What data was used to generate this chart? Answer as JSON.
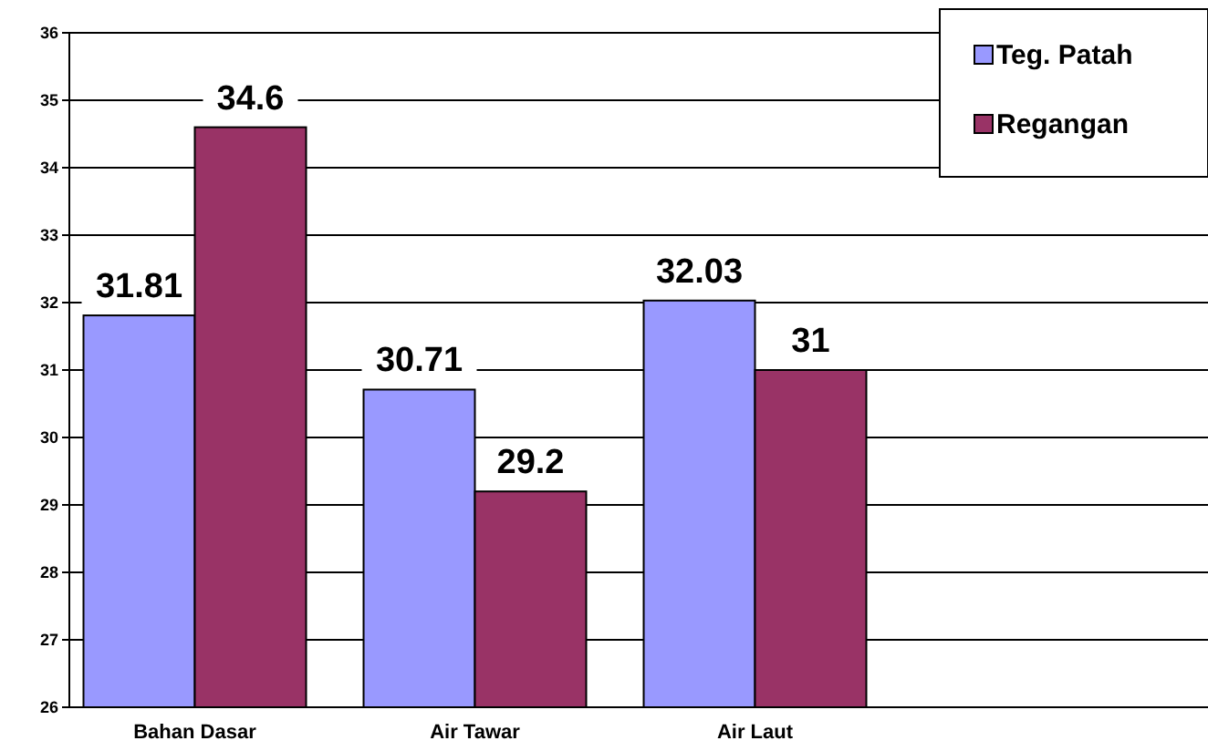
{
  "chart_data": {
    "type": "bar",
    "categories": [
      "Bahan Dasar",
      "Air Tawar",
      "Air Laut"
    ],
    "series": [
      {
        "name": "Teg. Patah",
        "color": "#9999ff",
        "values": [
          31.81,
          30.71,
          32.03
        ]
      },
      {
        "name": "Regangan",
        "color": "#993366",
        "values": [
          34.6,
          29.2,
          31
        ]
      }
    ],
    "ylim": [
      26,
      36
    ],
    "yticks": [
      26,
      27,
      28,
      29,
      30,
      31,
      32,
      33,
      34,
      35,
      36
    ],
    "grid": "y",
    "legend": "top right",
    "data_labels": true
  }
}
